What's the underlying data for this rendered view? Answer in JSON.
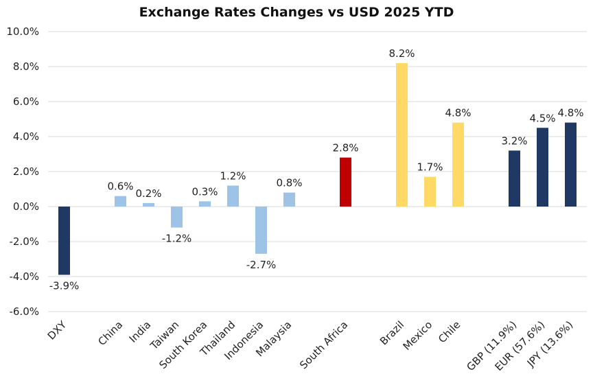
{
  "chart_data": {
    "type": "bar",
    "title": "Exchange Rates Changes vs USD 2025 YTD",
    "xlabel": "",
    "ylabel": "",
    "ylim": [
      -6.0,
      10.0
    ],
    "y_tick_step": 2.0,
    "y_tick_format": "percent_1dp",
    "grid": true,
    "legend": "none",
    "categories": [
      "DXY",
      "China",
      "India",
      "Taiwan",
      "South Korea",
      "Thailand",
      "Indonesia",
      "Malaysia",
      "South Africa",
      "Brazil",
      "Mexico",
      "Chile",
      "GBP (11.9%)",
      "EUR (57.6%)",
      "JPY (13.6%)"
    ],
    "values": [
      -3.9,
      0.6,
      0.2,
      -1.2,
      0.3,
      1.2,
      -2.7,
      0.8,
      2.8,
      8.2,
      1.7,
      4.8,
      3.2,
      4.5,
      4.8
    ],
    "data_labels": [
      "-3.9%",
      "0.6%",
      "0.2%",
      "-1.2%",
      "0.3%",
      "1.2%",
      "-2.7%",
      "0.8%",
      "2.8%",
      "8.2%",
      "1.7%",
      "4.8%",
      "3.2%",
      "4.5%",
      "4.8%"
    ],
    "bar_colors": [
      "#1f3864",
      "#9dc3e6",
      "#9dc3e6",
      "#9dc3e6",
      "#9dc3e6",
      "#9dc3e6",
      "#9dc3e6",
      "#9dc3e6",
      "#c00000",
      "#ffd966",
      "#ffd966",
      "#ffd966",
      "#1f3864",
      "#1f3864",
      "#1f3864"
    ],
    "slot_positions": [
      0,
      2,
      3,
      4,
      5,
      6,
      7,
      8,
      10,
      12,
      13,
      14,
      16,
      17,
      18
    ]
  }
}
